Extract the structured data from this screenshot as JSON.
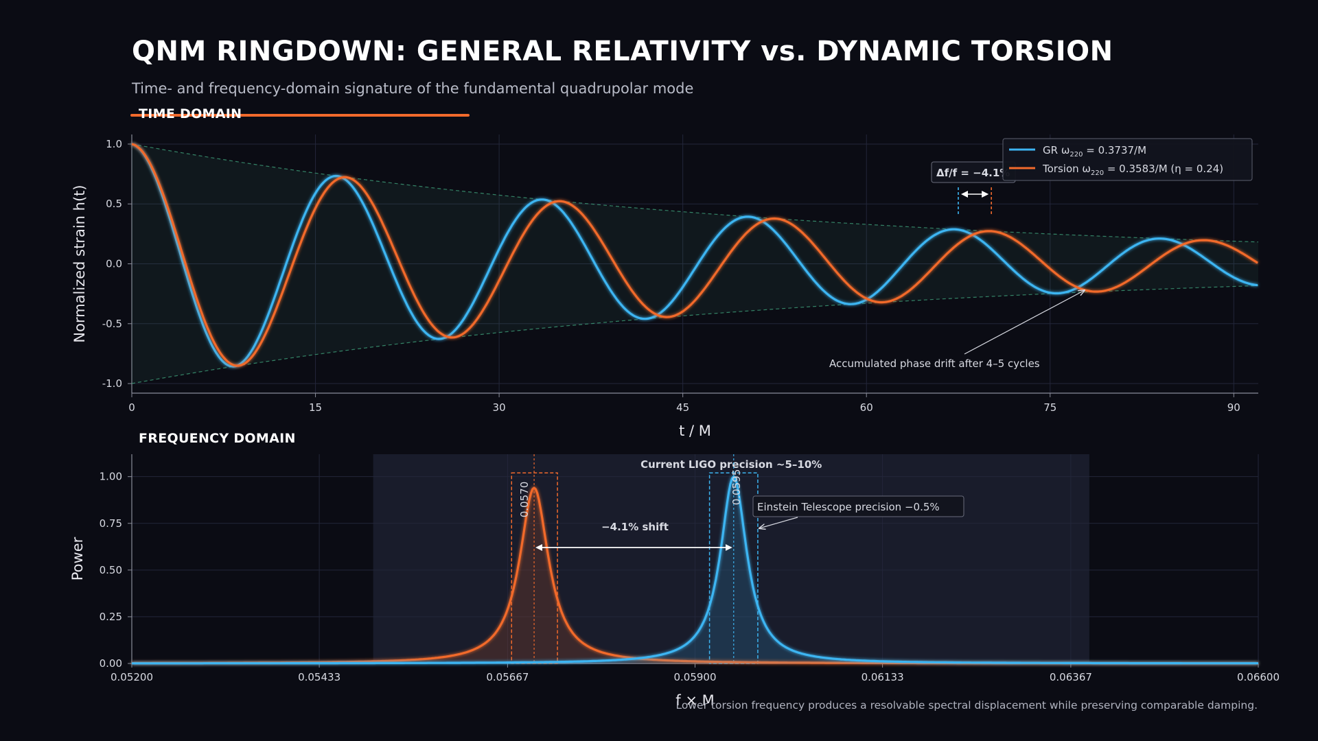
{
  "page": {
    "title": "QNM RINGDOWN: GENERAL RELATIVITY vs. DYNAMIC TORSION",
    "subtitle": "Time- and frequency-domain signature of the fundamental quadrupolar mode",
    "time_label": "TIME DOMAIN",
    "freq_label": "FREQUENCY DOMAIN",
    "footnote": "Lower torsion frequency produces a resolvable spectral displacement while preserving comparable damping."
  },
  "colors": {
    "gr": "#3db5f2",
    "torsion": "#f26a2c",
    "envelope": "#3fa07a",
    "background": "#0b0c14",
    "accent": "#f26a2c"
  },
  "chart_data": [
    {
      "type": "line",
      "name": "time-domain",
      "xlabel": "t / M",
      "ylabel": "Normalized strain  h(t)",
      "xlim": [
        0,
        92
      ],
      "ylim": [
        -1.08,
        1.08
      ],
      "xticks": [
        "0",
        "15",
        "30",
        "45",
        "60",
        "75",
        "90"
      ],
      "xtick_values": [
        0,
        15,
        30,
        45,
        60,
        75,
        90
      ],
      "yticks": [
        "1.0",
        "0.5",
        "0.0",
        "-0.5",
        "-1.0"
      ],
      "ytick_values": [
        1.0,
        0.5,
        0.0,
        -0.5,
        -1.0
      ],
      "grid": true,
      "legend_position": "top-right",
      "series": [
        {
          "name": "GR",
          "legend_prefix": "GR  ω",
          "legend_sub": "220",
          "legend_suffix": " = 0.3737/M",
          "omega": 0.3737,
          "tau": 54,
          "color": "#3db5f2"
        },
        {
          "name": "Torsion",
          "legend_prefix": "Torsion  ω",
          "legend_sub": "220",
          "legend_suffix": " = 0.3583/M  (η = 0.24)",
          "omega": 0.3583,
          "tau": 54,
          "color": "#f26a2c"
        }
      ],
      "envelope": {
        "tau": 54
      },
      "annotations": {
        "phase_drift": "Accumulated phase drift after 4–5 cycles",
        "delta_box": "Δf/f = −4.1%",
        "delta_marks": [
          67.5,
          70.2
        ]
      }
    },
    {
      "type": "line",
      "name": "frequency-domain",
      "xlabel": "f × M",
      "ylabel": "Power",
      "xlim": [
        0.052,
        0.066
      ],
      "ylim": [
        0,
        1.12
      ],
      "xticks": [
        "0.05200",
        "0.05433",
        "0.05667",
        "0.05900",
        "0.06133",
        "0.06367",
        "0.06600"
      ],
      "xtick_values": [
        0.052,
        0.05433,
        0.05667,
        0.059,
        0.06133,
        0.06367,
        0.066
      ],
      "yticks": [
        "1.00",
        "0.75",
        "0.50",
        "0.25",
        "0.00"
      ],
      "ytick_values": [
        1.0,
        0.75,
        0.5,
        0.25,
        0.0
      ],
      "grid": true,
      "series": [
        {
          "name": "Torsion",
          "peak_f": 0.057,
          "peak": 0.94,
          "width": 0.00022,
          "color": "#f26a2c"
        },
        {
          "name": "GR",
          "peak_f": 0.05948,
          "peak": 1.0,
          "width": 0.0002,
          "color": "#3db5f2"
        }
      ],
      "annotations": {
        "ligo_band": [
          0.055,
          0.0639
        ],
        "ligo_label": "Current LIGO precision  ~5–10%",
        "et_label": "Einstein Telescope precision  −0.5%",
        "shift_label": "−4.1% shift",
        "torsion_peak_label": "0.0570",
        "gr_peak_label": "0.0595",
        "torsion_box": [
          0.05672,
          0.05729
        ],
        "gr_box": [
          0.05918,
          0.05978
        ]
      }
    }
  ]
}
